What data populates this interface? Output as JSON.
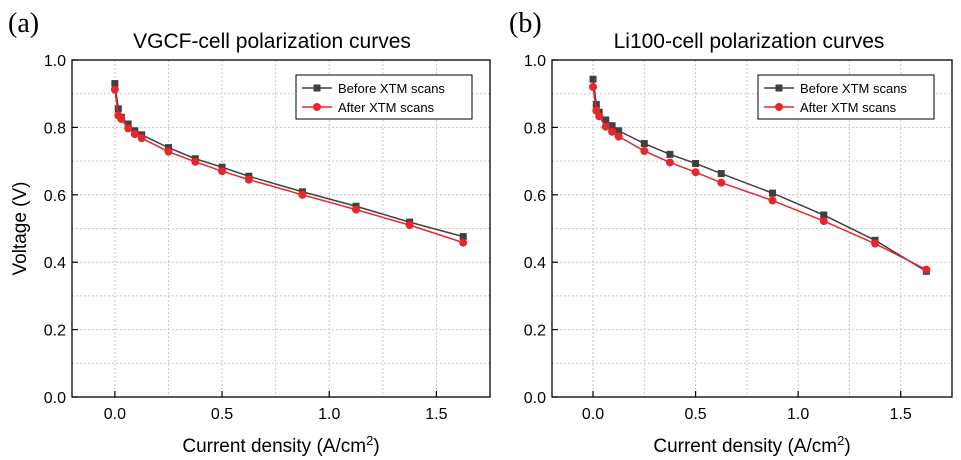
{
  "chart_data": [
    {
      "type": "line",
      "panel_label": "(a)",
      "title": "VGCF-cell polarization curves",
      "xlabel": "Current density (A/cm",
      "xlabel_sup": "2",
      "xlabel_suffix": ")",
      "ylabel": "Voltage (V)",
      "xlim": [
        -0.2,
        1.75
      ],
      "ylim": [
        0.0,
        1.0
      ],
      "xticks": [
        "0.0",
        "0.5",
        "1.0",
        "1.5"
      ],
      "yticks": [
        "0.0",
        "0.2",
        "0.4",
        "0.6",
        "0.8",
        "1.0"
      ],
      "grid": true,
      "legend_position": "top-right",
      "series": [
        {
          "name": "Before XTM scans",
          "color": "#404040",
          "marker": "square",
          "x": [
            0.0,
            0.016,
            0.03,
            0.062,
            0.093,
            0.125,
            0.25,
            0.375,
            0.5,
            0.625,
            0.875,
            1.125,
            1.375,
            1.625
          ],
          "y": [
            0.93,
            0.855,
            0.83,
            0.81,
            0.79,
            0.778,
            0.74,
            0.707,
            0.682,
            0.655,
            0.609,
            0.566,
            0.519,
            0.476
          ]
        },
        {
          "name": "After XTM scans",
          "color": "#e8262b",
          "marker": "circle",
          "x": [
            0.0,
            0.016,
            0.03,
            0.062,
            0.093,
            0.125,
            0.25,
            0.375,
            0.5,
            0.625,
            0.875,
            1.125,
            1.375,
            1.625
          ],
          "y": [
            0.912,
            0.835,
            0.825,
            0.797,
            0.78,
            0.768,
            0.728,
            0.698,
            0.67,
            0.645,
            0.6,
            0.556,
            0.51,
            0.458
          ]
        }
      ]
    },
    {
      "type": "line",
      "panel_label": "(b)",
      "title": "Li100-cell polarization curves",
      "xlabel": "Current density (A/cm",
      "xlabel_sup": "2",
      "xlabel_suffix": ")",
      "ylabel": "",
      "xlim": [
        -0.2,
        1.75
      ],
      "ylim": [
        0.0,
        1.0
      ],
      "xticks": [
        "0.0",
        "0.5",
        "1.0",
        "1.5"
      ],
      "yticks": [
        "0.0",
        "0.2",
        "0.4",
        "0.6",
        "0.8",
        "1.0"
      ],
      "grid": true,
      "legend_position": "top-right",
      "series": [
        {
          "name": "Before XTM scans",
          "color": "#404040",
          "marker": "square",
          "x": [
            0.0,
            0.016,
            0.03,
            0.062,
            0.093,
            0.125,
            0.25,
            0.375,
            0.5,
            0.625,
            0.875,
            1.125,
            1.375,
            1.625
          ],
          "y": [
            0.943,
            0.868,
            0.845,
            0.822,
            0.805,
            0.79,
            0.752,
            0.72,
            0.693,
            0.663,
            0.605,
            0.54,
            0.465,
            0.373
          ]
        },
        {
          "name": "After XTM scans",
          "color": "#e8262b",
          "marker": "circle",
          "x": [
            0.0,
            0.016,
            0.03,
            0.062,
            0.093,
            0.125,
            0.25,
            0.375,
            0.5,
            0.625,
            0.875,
            1.125,
            1.375,
            1.625
          ],
          "y": [
            0.92,
            0.85,
            0.833,
            0.802,
            0.787,
            0.773,
            0.73,
            0.696,
            0.667,
            0.636,
            0.583,
            0.522,
            0.455,
            0.378
          ]
        }
      ]
    }
  ]
}
